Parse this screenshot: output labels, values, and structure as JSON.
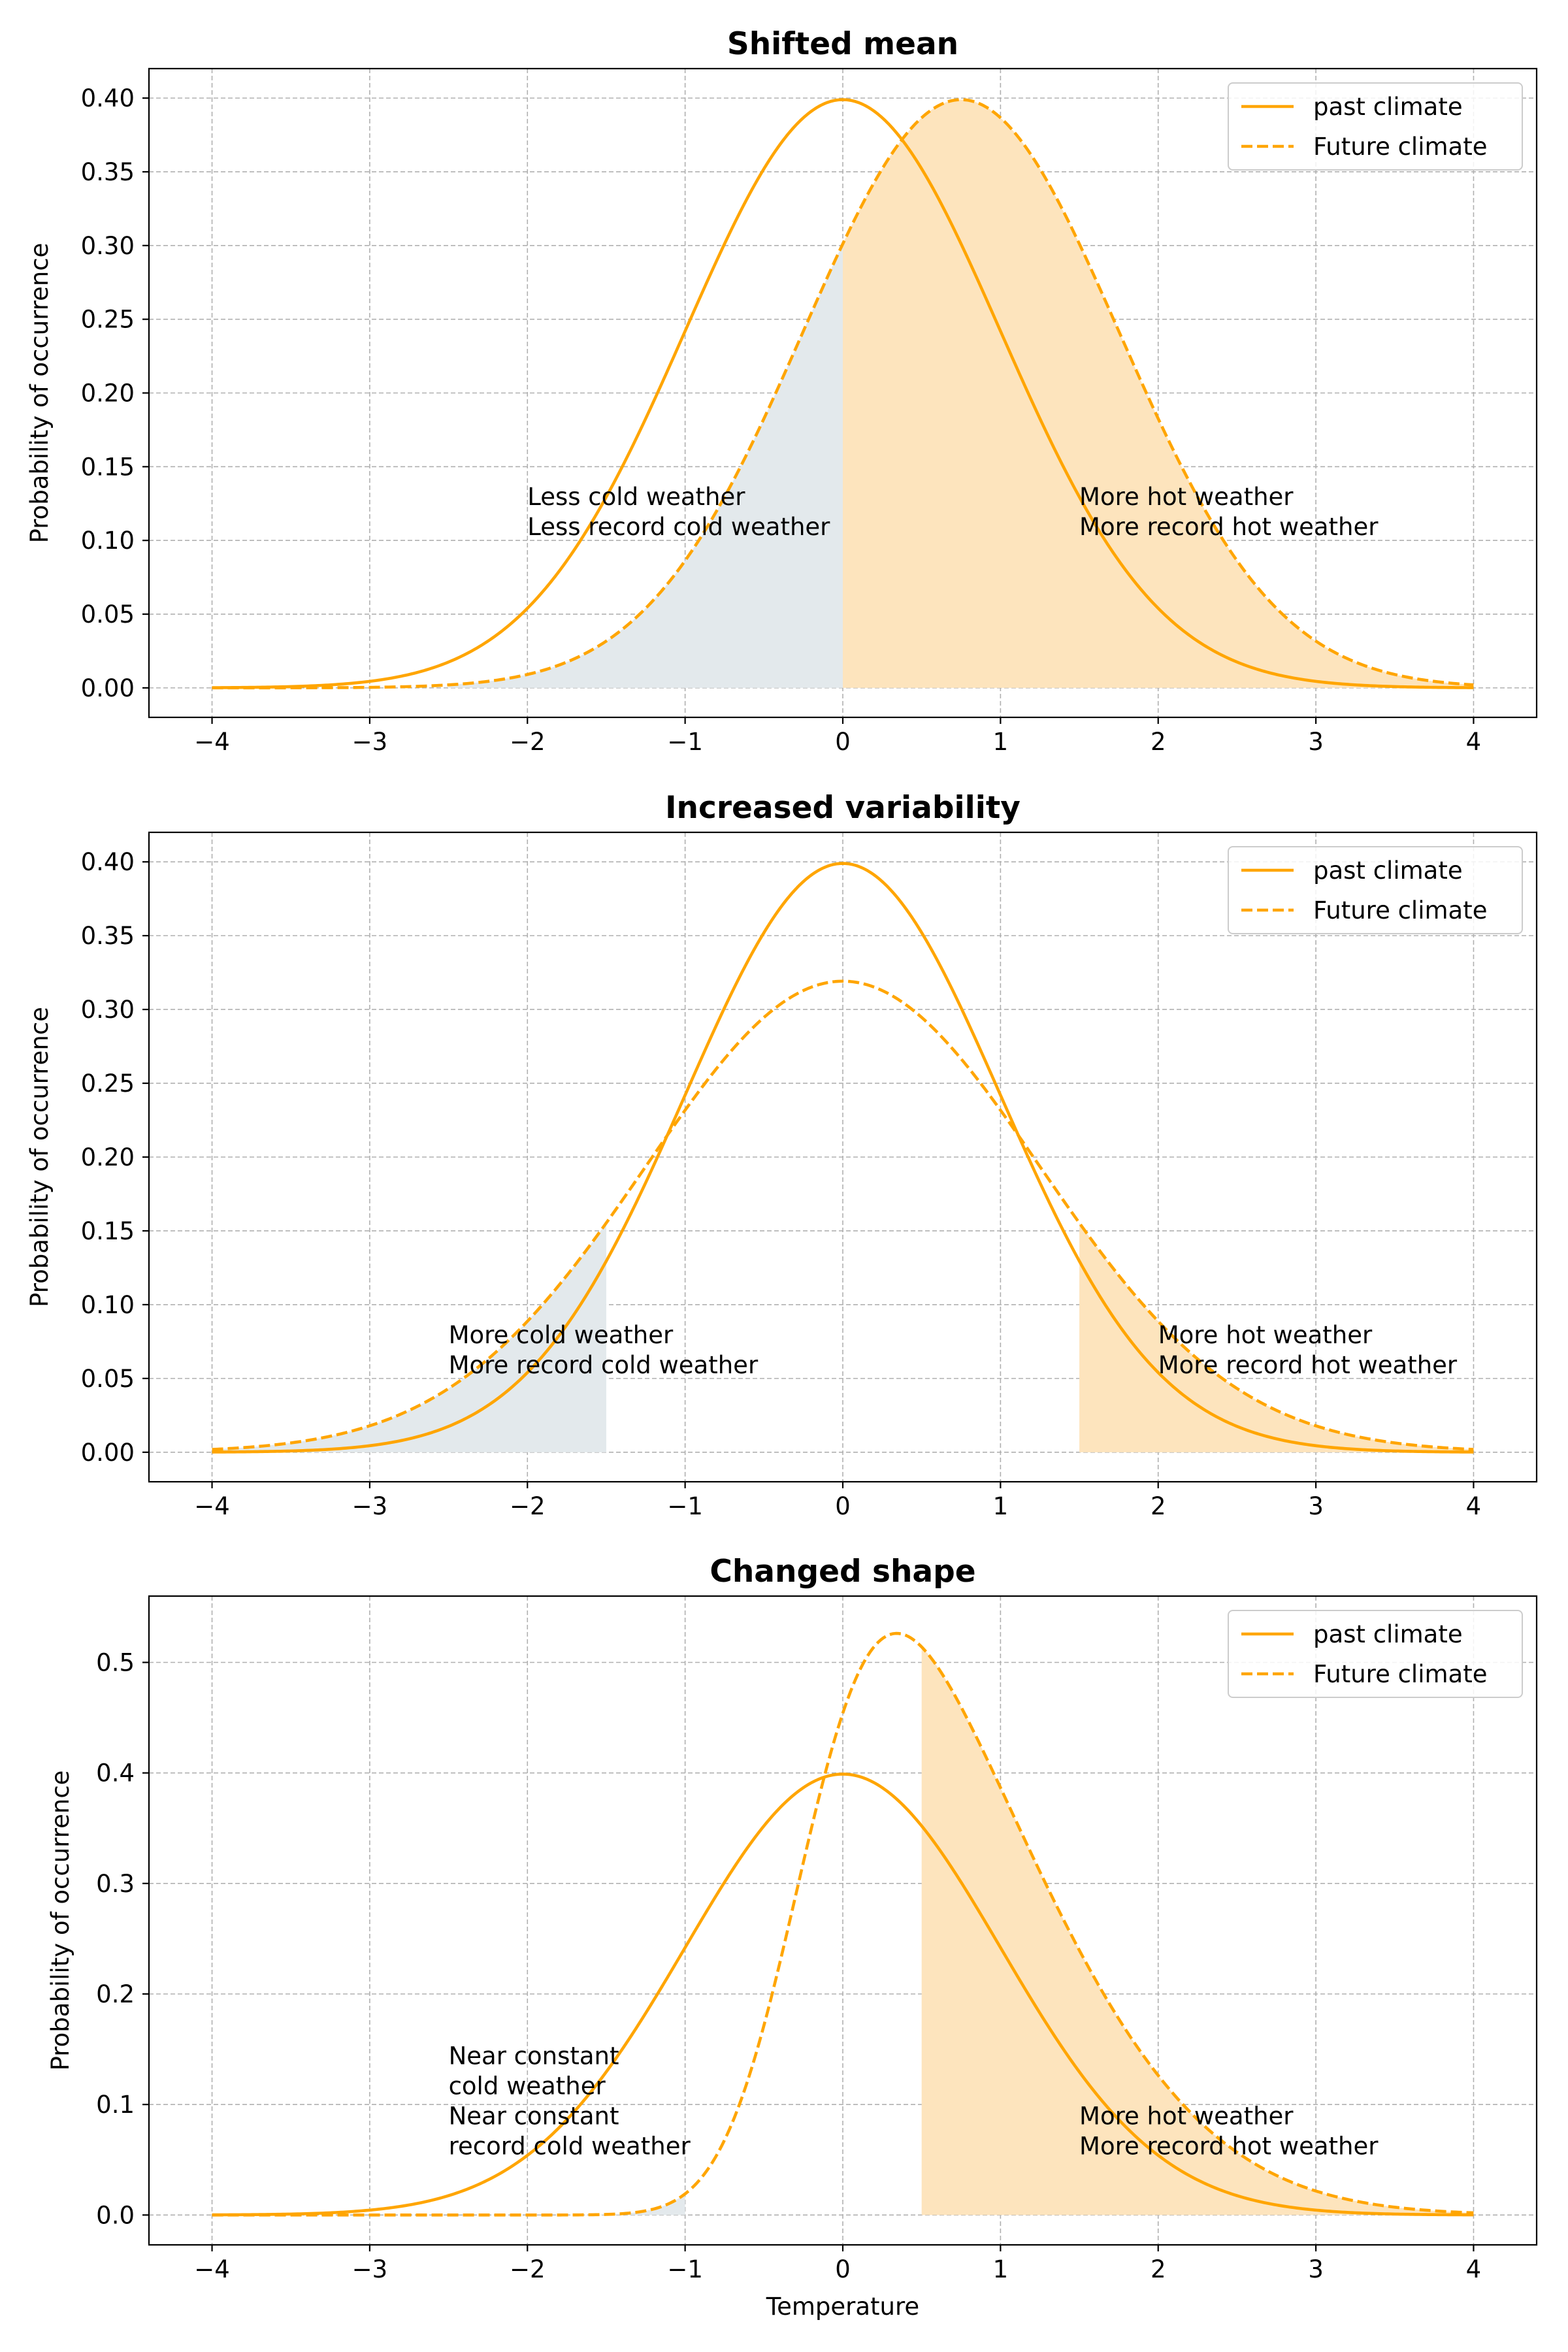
{
  "colors": {
    "line": "#ffa500",
    "hot_fill": "#fde4bd",
    "cold_fill": "#e3e9ec",
    "grid": "#b0b0b0",
    "frame": "#000000"
  },
  "chart_data": [
    {
      "type": "line",
      "title": "Shifted mean",
      "xlabel": "",
      "ylabel": "Probability of occurrence",
      "xlim": [
        -4.4,
        4.4
      ],
      "ylim": [
        -0.02,
        0.42
      ],
      "xticks": [
        -4,
        -3,
        -2,
        -1,
        0,
        1,
        2,
        3,
        4
      ],
      "xtick_labels": [
        "−4",
        "−3",
        "−2",
        "−1",
        "0",
        "1",
        "2",
        "3",
        "4"
      ],
      "yticks": [
        0.0,
        0.05,
        0.1,
        0.15,
        0.2,
        0.25,
        0.3,
        0.35,
        0.4
      ],
      "ytick_labels": [
        "0.00",
        "0.05",
        "0.10",
        "0.15",
        "0.20",
        "0.25",
        "0.30",
        "0.35",
        "0.40"
      ],
      "grid": true,
      "legend_position": "top-right",
      "series": [
        {
          "name": "past climate",
          "style": "solid",
          "distribution": "normal",
          "mean": 0,
          "sd": 1
        },
        {
          "name": "Future climate",
          "style": "dashed",
          "distribution": "normal",
          "mean": 0.75,
          "sd": 1
        }
      ],
      "shaded_regions": [
        {
          "kind": "cold",
          "series": "Future climate",
          "from": -2.5,
          "to": 0
        },
        {
          "kind": "hot",
          "series": "Future climate",
          "from": 0,
          "to": 4
        }
      ],
      "annotations": [
        {
          "x": -2.0,
          "y": 0.1,
          "lines": [
            "Less cold weather",
            "Less record cold weather"
          ]
        },
        {
          "x": 1.5,
          "y": 0.1,
          "lines": [
            "More hot weather",
            "More record hot weather"
          ]
        }
      ]
    },
    {
      "type": "line",
      "title": "Increased variability",
      "xlabel": "",
      "ylabel": "Probability of occurrence",
      "xlim": [
        -4.4,
        4.4
      ],
      "ylim": [
        -0.02,
        0.42
      ],
      "xticks": [
        -4,
        -3,
        -2,
        -1,
        0,
        1,
        2,
        3,
        4
      ],
      "xtick_labels": [
        "−4",
        "−3",
        "−2",
        "−1",
        "0",
        "1",
        "2",
        "3",
        "4"
      ],
      "yticks": [
        0.0,
        0.05,
        0.1,
        0.15,
        0.2,
        0.25,
        0.3,
        0.35,
        0.4
      ],
      "ytick_labels": [
        "0.00",
        "0.05",
        "0.10",
        "0.15",
        "0.20",
        "0.25",
        "0.30",
        "0.35",
        "0.40"
      ],
      "grid": true,
      "legend_position": "top-right",
      "series": [
        {
          "name": "past climate",
          "style": "solid",
          "distribution": "normal",
          "mean": 0,
          "sd": 1
        },
        {
          "name": "Future climate",
          "style": "dashed",
          "distribution": "normal",
          "mean": 0,
          "sd": 1.25
        }
      ],
      "shaded_regions": [
        {
          "kind": "cold",
          "series": "Future climate",
          "from": -4,
          "to": -1.5
        },
        {
          "kind": "hot",
          "series": "Future climate",
          "from": 1.5,
          "to": 4
        }
      ],
      "annotations": [
        {
          "x": -2.5,
          "y": 0.05,
          "lines": [
            "More cold weather",
            "More record cold weather"
          ]
        },
        {
          "x": 2.0,
          "y": 0.05,
          "lines": [
            "More hot weather",
            "More record hot weather"
          ]
        }
      ]
    },
    {
      "type": "line",
      "title": "Changed shape",
      "xlabel": "Temperature",
      "ylabel": "Probability of occurrence",
      "xlim": [
        -4.4,
        4.4
      ],
      "ylim": [
        -0.027,
        0.56
      ],
      "xticks": [
        -4,
        -3,
        -2,
        -1,
        0,
        1,
        2,
        3,
        4
      ],
      "xtick_labels": [
        "−4",
        "−3",
        "−2",
        "−1",
        "0",
        "1",
        "2",
        "3",
        "4"
      ],
      "yticks": [
        0.0,
        0.1,
        0.2,
        0.3,
        0.4,
        0.5
      ],
      "ytick_labels": [
        "0.0",
        "0.1",
        "0.2",
        "0.3",
        "0.4",
        "0.5"
      ],
      "grid": true,
      "legend_position": "top-right",
      "series": [
        {
          "name": "past climate",
          "style": "solid",
          "distribution": "normal",
          "mean": 0,
          "sd": 1
        },
        {
          "name": "Future climate",
          "style": "dashed",
          "distribution": "skew-normal",
          "location": -0.25,
          "scale": 1.25,
          "shape": 3
        }
      ],
      "shaded_regions": [
        {
          "kind": "cold",
          "series": "Future climate",
          "from": -2.5,
          "to": -1.0
        },
        {
          "kind": "hot",
          "series": "Future climate",
          "from": 0.5,
          "to": 4
        }
      ],
      "annotations": [
        {
          "x": -2.5,
          "y": 0.05,
          "lines": [
            "Near constant",
            "cold weather",
            "Near constant",
            "record cold weather"
          ]
        },
        {
          "x": 1.5,
          "y": 0.05,
          "lines": [
            "More hot weather",
            "More record hot weather"
          ]
        }
      ]
    }
  ]
}
